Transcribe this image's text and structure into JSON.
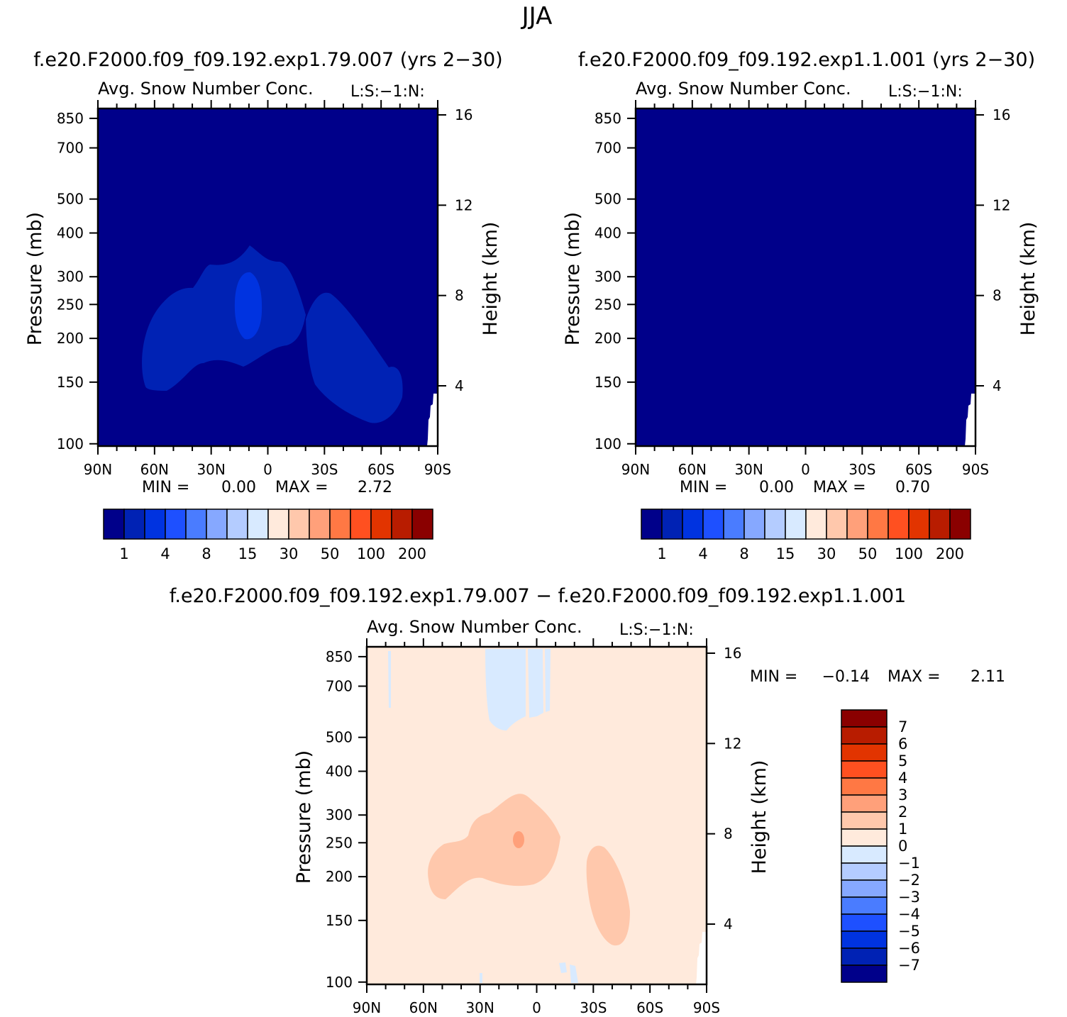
{
  "figure": {
    "title": "JJA",
    "colors": {
      "background": "#00008a",
      "fill": "#ffffff"
    },
    "main_scale": {
      "colors": [
        "#00008a",
        "#0022b4",
        "#0033e0",
        "#1e50ff",
        "#4a7cff",
        "#86a8ff",
        "#b4ccff",
        "#d8eaff",
        "#ffeadc",
        "#ffc8ac",
        "#ffa07a",
        "#ff7844",
        "#ff5020",
        "#e23400",
        "#b81c00",
        "#8a0000"
      ],
      "labels": [
        "1",
        "4",
        "8",
        "15",
        "30",
        "50",
        "100",
        "200"
      ]
    },
    "diff_scale": {
      "colors": [
        "#00008a",
        "#0022b4",
        "#0033e0",
        "#1e50ff",
        "#4a7cff",
        "#86a8ff",
        "#b4ccff",
        "#d8eaff",
        "#ffeadc",
        "#ffc8ac",
        "#ffa07a",
        "#ff7844",
        "#ff5020",
        "#e23400",
        "#b81c00",
        "#8a0000"
      ],
      "labels": [
        "7",
        "6",
        "5",
        "4",
        "3",
        "2",
        "1",
        "0",
        "−1",
        "−2",
        "−3",
        "−4",
        "−5",
        "−6",
        "−7"
      ]
    },
    "axis_text": {
      "pressure_label": "Pressure (mb)",
      "height_label": "Height (km)",
      "pressure_ticks": [
        "100",
        "150",
        "200",
        "250",
        "300",
        "400",
        "500",
        "700",
        "850"
      ],
      "height_ticks": [
        "16",
        "12",
        "8",
        "4"
      ],
      "lat_ticks": [
        "90N",
        "60N",
        "30N",
        "0",
        "30S",
        "60S",
        "90S"
      ]
    }
  },
  "panels": [
    {
      "header": "f.e20.F2000.f09_f09.192.exp1.79.007 (yrs 2−30)",
      "subtitle_left": "Avg. Snow Number Conc.",
      "subtitle_right": "L:S:−1:N:",
      "min_label": "MIN =",
      "min_value": "0.00",
      "max_label": "MAX =",
      "max_value": "2.72"
    },
    {
      "header": "f.e20.F2000.f09_f09.192.exp1.1.001 (yrs 2−30)",
      "subtitle_left": "Avg. Snow Number Conc.",
      "subtitle_right": "L:S:−1:N:",
      "min_label": "MIN =",
      "min_value": "0.00",
      "max_label": "MAX =",
      "max_value": "0.70"
    },
    {
      "header": "f.e20.F2000.f09_f09.192.exp1.79.007 − f.e20.F2000.f09_f09.192.exp1.1.001",
      "subtitle_left": "Avg. Snow Number Conc.",
      "subtitle_right": "L:S:−1:N:",
      "min_label": "MIN =",
      "min_value": "−0.14",
      "max_label": "MAX =",
      "max_value": "2.11"
    }
  ],
  "chart_data": [
    {
      "type": "heatmap",
      "title": "Avg. Snow Number Conc.",
      "header": "f.e20.F2000.f09_f09.192.exp1.79.007 (yrs 2−30)",
      "xlabel": "",
      "ylabel": "Pressure (mb)",
      "y2label": "Height (km)",
      "xlim": [
        "90N",
        "90S"
      ],
      "ylim_mb": [
        850,
        100
      ],
      "log_y": true,
      "contour_levels": [
        1,
        4,
        8,
        15,
        30,
        50,
        100,
        200
      ],
      "min": 0.0,
      "max": 2.72
    },
    {
      "type": "heatmap",
      "title": "Avg. Snow Number Conc.",
      "header": "f.e20.F2000.f09_f09.192.exp1.1.001 (yrs 2−30)",
      "xlabel": "",
      "ylabel": "Pressure (mb)",
      "y2label": "Height (km)",
      "xlim": [
        "90N",
        "90S"
      ],
      "ylim_mb": [
        850,
        100
      ],
      "log_y": true,
      "contour_levels": [
        1,
        4,
        8,
        15,
        30,
        50,
        100,
        200
      ],
      "min": 0.0,
      "max": 0.7
    },
    {
      "type": "heatmap",
      "title": "Avg. Snow Number Conc.",
      "header": "f.e20.F2000.f09_f09.192.exp1.79.007 − f.e20.F2000.f09_f09.192.exp1.1.001",
      "xlabel": "",
      "ylabel": "Pressure (mb)",
      "y2label": "Height (km)",
      "xlim": [
        "90N",
        "90S"
      ],
      "ylim_mb": [
        850,
        100
      ],
      "log_y": true,
      "contour_levels": [
        -7,
        -6,
        -5,
        -4,
        -3,
        -2,
        -1,
        0,
        1,
        2,
        3,
        4,
        5,
        6,
        7
      ],
      "min": -0.14,
      "max": 2.11
    }
  ]
}
